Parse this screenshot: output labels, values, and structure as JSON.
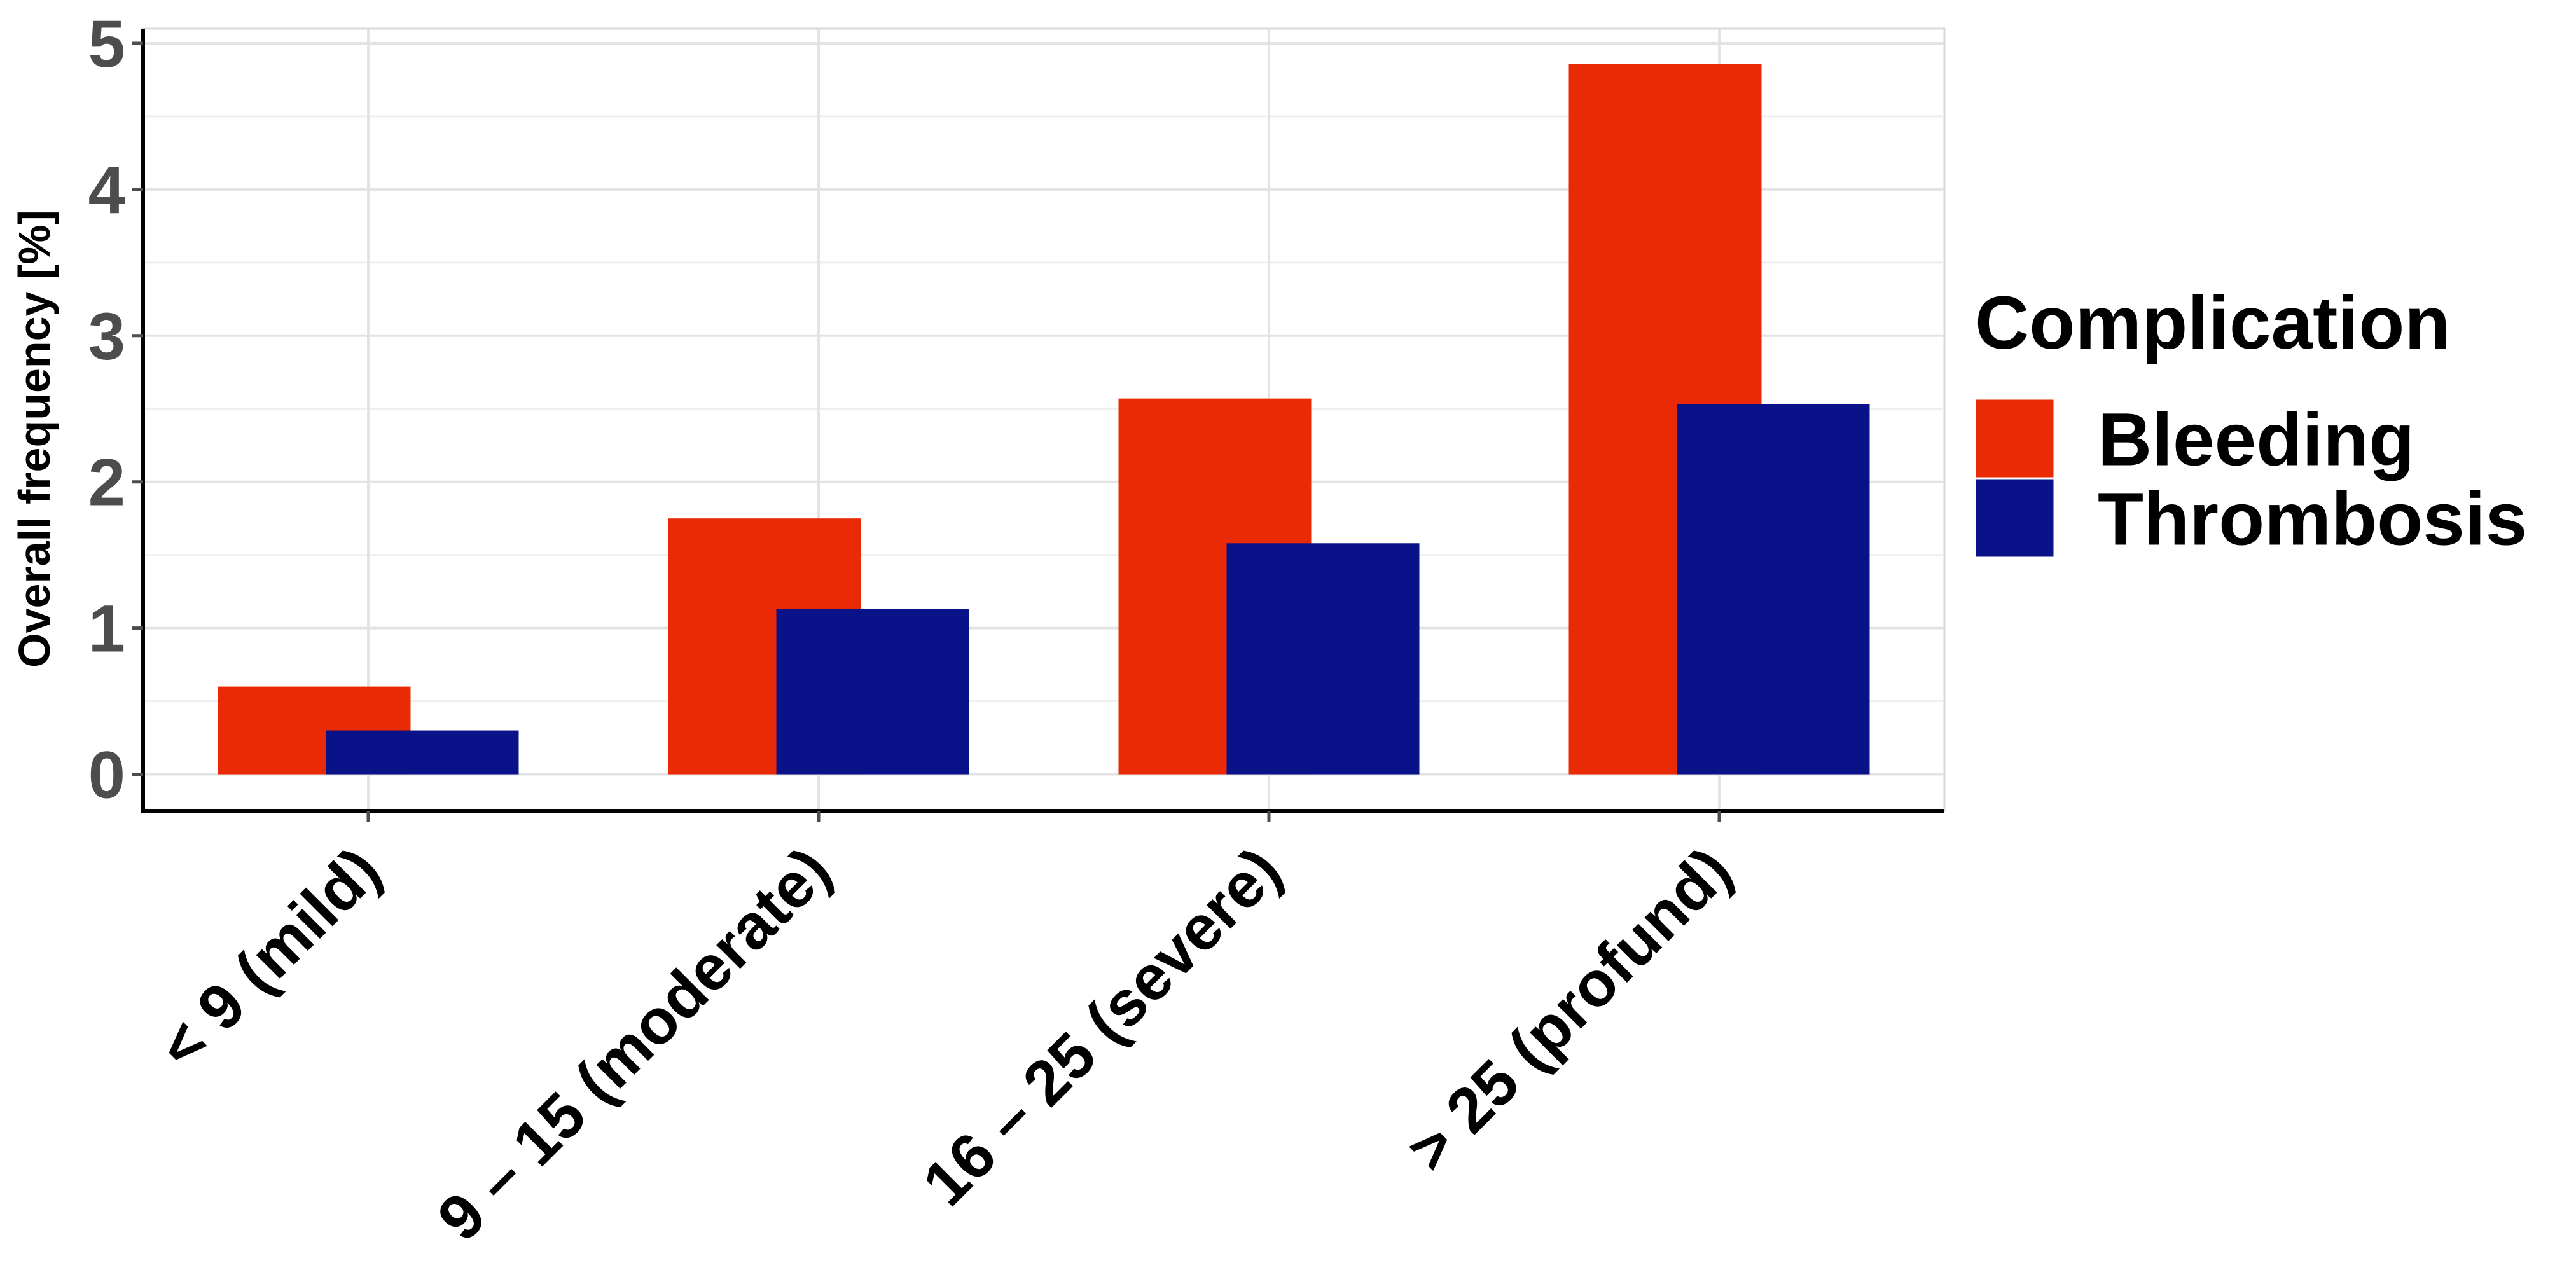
{
  "chart_data": {
    "type": "bar",
    "categories": [
      "< 9 (mild)",
      "9 – 15 (moderate)",
      "16 – 25 (severe)",
      "> 25 (profund)"
    ],
    "series": [
      {
        "name": "Bleeding",
        "values": [
          0.6,
          1.75,
          2.57,
          4.86
        ],
        "color": "#e92a05"
      },
      {
        "name": "Thrombosis",
        "values": [
          0.3,
          1.13,
          1.58,
          2.53
        ],
        "color": "#0a128a"
      }
    ],
    "title": "",
    "xlabel": "",
    "ylabel": "Overall frequency [%]",
    "ylim": [
      -0.25,
      5.1
    ],
    "yticks": [
      0,
      1,
      2,
      3,
      4,
      5
    ],
    "grid": true,
    "legend_title": "Complication",
    "legend_position": "right"
  }
}
